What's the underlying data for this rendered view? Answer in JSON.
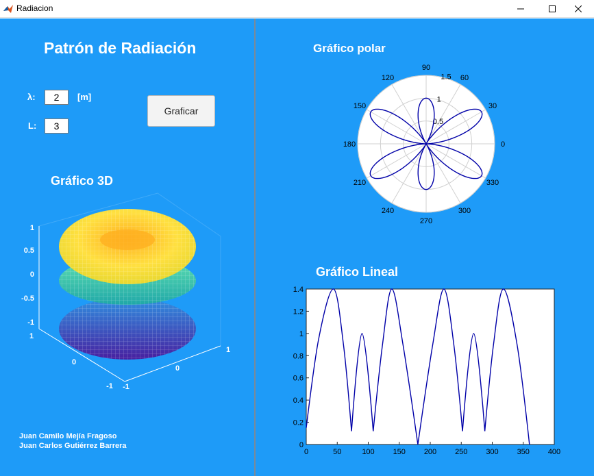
{
  "window": {
    "title": "Radiacion",
    "icons": {
      "app": "matlab-icon",
      "minimize": "minimize-icon",
      "maximize": "maximize-icon",
      "close": "close-icon"
    }
  },
  "left": {
    "title": "Patrón de Radiación",
    "lambda_label": "λ:",
    "lambda_value": "2",
    "unit": "[m]",
    "L_label": "L:",
    "L_value": "3",
    "button": "Graficar",
    "title_3d": "Gráfico 3D",
    "authors": [
      "Juan Camilo Mejía Fragoso",
      "Juan Carlos Gutiérrez Barrera"
    ]
  },
  "colors": {
    "panel": "#1e9bf8",
    "curve": "#0000a8",
    "divider": "#7a8a99"
  },
  "chart_data": [
    {
      "type": "line",
      "name": "polar",
      "title": "Gráfico polar",
      "projection": "polar",
      "angle_ticks": [
        "0",
        "30",
        "60",
        "90",
        "120",
        "150",
        "180",
        "210",
        "240",
        "270",
        "300",
        "330"
      ],
      "radial_ticks": [
        "0.5",
        "1",
        "1.5"
      ],
      "rlim": [
        0,
        1.5
      ],
      "lobes_deg": [
        30,
        90,
        150,
        210,
        270,
        330
      ],
      "lobe_peaks": [
        1.4,
        1.0,
        1.4,
        1.4,
        1.0,
        1.4
      ],
      "grid": true
    },
    {
      "type": "line",
      "name": "linear",
      "title": "Gráfico Lineal",
      "x": [
        0,
        20,
        44,
        60,
        73,
        90,
        108,
        123,
        138,
        156,
        180,
        204,
        222,
        238,
        252,
        270,
        288,
        302,
        318,
        340,
        360
      ],
      "y": [
        0.15,
        0.95,
        1.4,
        0.9,
        0.12,
        1.0,
        0.12,
        0.9,
        1.4,
        0.9,
        0.0,
        0.9,
        1.4,
        0.9,
        0.12,
        1.0,
        0.12,
        0.9,
        1.4,
        0.9,
        0.0
      ],
      "xlim": [
        0,
        400
      ],
      "ylim": [
        0,
        1.4
      ],
      "xticks": [
        "0",
        "50",
        "100",
        "150",
        "200",
        "250",
        "300",
        "350",
        "400"
      ],
      "yticks": [
        "0",
        "0.2",
        "0.4",
        "0.6",
        "0.8",
        "1",
        "1.2",
        "1.4"
      ],
      "grid": false
    },
    {
      "type": "surface",
      "name": "3d",
      "zticks": [
        "1",
        "0.5",
        "0",
        "-0.5",
        "-1"
      ],
      "xticks": [
        "-1",
        "0",
        "1"
      ],
      "yticks": [
        "1",
        "0",
        "-1"
      ]
    }
  ]
}
